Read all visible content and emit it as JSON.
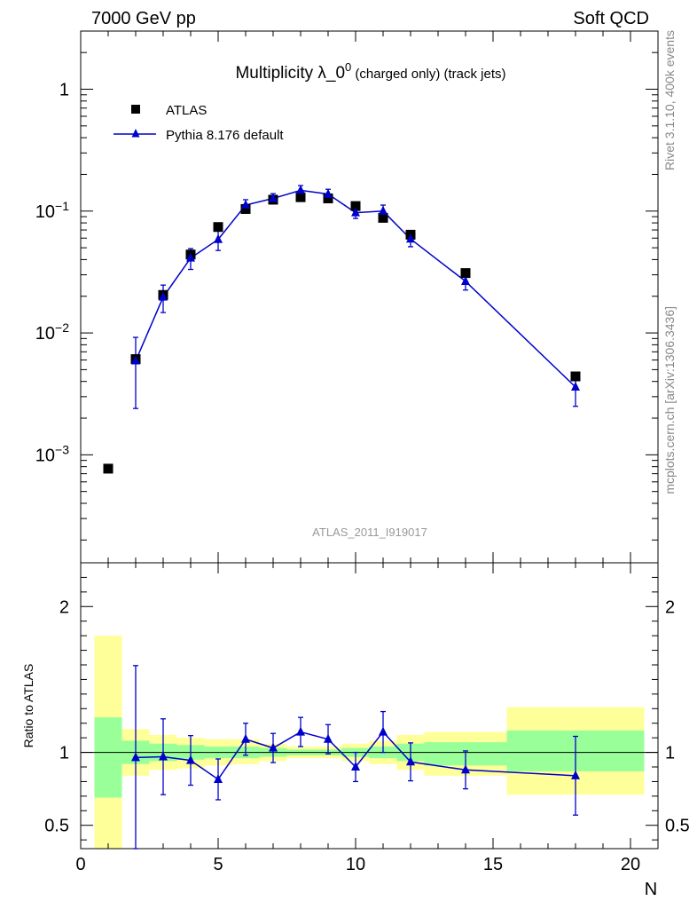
{
  "header": {
    "left": "7000 GeV pp",
    "right": "Soft QCD"
  },
  "side_labels": {
    "rivet": "Rivet 3.1.10,  400k events",
    "mcplots": "mcplots.cern.ch [arXiv:1306.3436]"
  },
  "colors": {
    "mc": "#0000cc",
    "band_green": "#99ff99",
    "band_yellow": "#ffff99",
    "data": "#000000"
  },
  "chart_data": [
    {
      "type": "scatter",
      "panel": "main",
      "title": "Multiplicity λ_0",
      "title_sup": "0",
      "title_suffix": " (charged only) (track jets)",
      "watermark": "ATLAS_2011_I919017",
      "xlim": [
        0,
        21
      ],
      "ylim_log": [
        0.00013,
        3.0
      ],
      "yscale": "log",
      "y_tick_labels": [
        {
          "value": 1,
          "base": "1",
          "exp": ""
        },
        {
          "value": 0.1,
          "base": "10",
          "exp": "−1"
        },
        {
          "value": 0.01,
          "base": "10",
          "exp": "−2"
        },
        {
          "value": 0.001,
          "base": "10",
          "exp": "−3"
        }
      ],
      "legend_position": "top-left",
      "series": [
        {
          "name": "ATLAS",
          "kind": "data",
          "x": [
            1,
            2,
            3,
            4,
            5,
            6,
            7,
            8,
            9,
            10,
            11,
            12,
            14,
            18
          ],
          "y": [
            0.00077,
            0.0061,
            0.0205,
            0.044,
            0.074,
            0.104,
            0.124,
            0.13,
            0.127,
            0.11,
            0.088,
            0.064,
            0.031,
            0.0044
          ]
        },
        {
          "name": "Pythia 8.176 default",
          "kind": "mc",
          "x": [
            2,
            3,
            4,
            5,
            6,
            7,
            8,
            9,
            10,
            11,
            12,
            14,
            18
          ],
          "y": [
            0.0059,
            0.0197,
            0.0412,
            0.0585,
            0.112,
            0.127,
            0.148,
            0.138,
            0.097,
            0.1,
            0.059,
            0.0265,
            0.0036
          ],
          "yerr_lo": [
            0.0035,
            0.005,
            0.008,
            0.011,
            0.012,
            0.012,
            0.014,
            0.013,
            0.01,
            0.012,
            0.008,
            0.004,
            0.0011
          ],
          "yerr_hi": [
            0.0033,
            0.005,
            0.008,
            0.011,
            0.012,
            0.012,
            0.014,
            0.013,
            0.01,
            0.012,
            0.008,
            0.004,
            0.0011
          ]
        }
      ]
    },
    {
      "type": "scatter",
      "panel": "ratio",
      "ylabel": "Ratio to ATLAS",
      "xlabel": "N",
      "xlim": [
        0,
        21
      ],
      "ylim": [
        0.34,
        2.3
      ],
      "x_ticks": [
        0,
        5,
        10,
        15,
        20
      ],
      "y_ticks": [
        0.5,
        1,
        2
      ],
      "bands": [
        {
          "x0": 0.5,
          "x1": 1.5,
          "green": [
            0.69,
            1.24
          ],
          "yellow": [
            0.3,
            1.8
          ]
        },
        {
          "x0": 1.5,
          "x1": 2.5,
          "green": [
            0.92,
            1.08
          ],
          "yellow": [
            0.84,
            1.16
          ]
        },
        {
          "x0": 2.5,
          "x1": 3.5,
          "green": [
            0.94,
            1.06
          ],
          "yellow": [
            0.88,
            1.12
          ]
        },
        {
          "x0": 3.5,
          "x1": 4.5,
          "green": [
            0.95,
            1.05
          ],
          "yellow": [
            0.89,
            1.1
          ]
        },
        {
          "x0": 4.5,
          "x1": 5.5,
          "green": [
            0.96,
            1.04
          ],
          "yellow": [
            0.91,
            1.09
          ]
        },
        {
          "x0": 5.5,
          "x1": 6.5,
          "green": [
            0.96,
            1.04
          ],
          "yellow": [
            0.92,
            1.09
          ]
        },
        {
          "x0": 6.5,
          "x1": 7.5,
          "green": [
            0.97,
            1.03
          ],
          "yellow": [
            0.94,
            1.06
          ]
        },
        {
          "x0": 7.5,
          "x1": 8.5,
          "green": [
            0.98,
            1.02
          ],
          "yellow": [
            0.96,
            1.04
          ]
        },
        {
          "x0": 8.5,
          "x1": 9.5,
          "green": [
            0.98,
            1.02
          ],
          "yellow": [
            0.96,
            1.04
          ]
        },
        {
          "x0": 9.5,
          "x1": 10.5,
          "green": [
            0.97,
            1.03
          ],
          "yellow": [
            0.94,
            1.06
          ]
        },
        {
          "x0": 10.5,
          "x1": 11.5,
          "green": [
            0.96,
            1.04
          ],
          "yellow": [
            0.92,
            1.08
          ]
        },
        {
          "x0": 11.5,
          "x1": 12.5,
          "green": [
            0.94,
            1.06
          ],
          "yellow": [
            0.88,
            1.12
          ]
        },
        {
          "x0": 12.5,
          "x1": 15.5,
          "green": [
            0.91,
            1.07
          ],
          "yellow": [
            0.84,
            1.14
          ]
        },
        {
          "x0": 15.5,
          "x1": 20.5,
          "green": [
            0.87,
            1.15
          ],
          "yellow": [
            0.71,
            1.31
          ]
        }
      ],
      "series": [
        {
          "name": "Pythia 8.176 default / ATLAS",
          "x": [
            2,
            3,
            4,
            5,
            6,
            7,
            8,
            9,
            10,
            11,
            12,
            14,
            18
          ],
          "y": [
            0.965,
            0.97,
            0.945,
            0.815,
            1.09,
            1.03,
            1.14,
            1.09,
            0.9,
            1.14,
            0.935,
            0.88,
            0.84
          ],
          "yerr_lo": [
            0.63,
            0.26,
            0.17,
            0.14,
            0.11,
            0.1,
            0.1,
            0.1,
            0.1,
            0.14,
            0.13,
            0.13,
            0.27
          ],
          "yerr_hi": [
            0.63,
            0.26,
            0.17,
            0.14,
            0.11,
            0.1,
            0.1,
            0.1,
            0.1,
            0.14,
            0.13,
            0.13,
            0.27
          ]
        }
      ]
    }
  ]
}
